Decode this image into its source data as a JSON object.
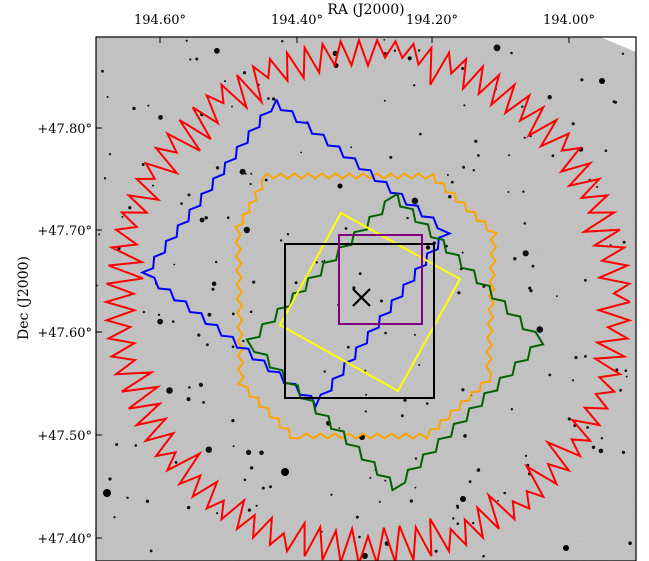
{
  "figure": {
    "top_axis_title": "RA (J2000)",
    "left_axis_title": "Dec (J2000)",
    "ra_ticks": [
      "194.60°",
      "194.40°",
      "194.20°",
      "194.00°"
    ],
    "dec_ticks": [
      "+47.80°",
      "+47.70°",
      "+47.60°",
      "+47.50°",
      "+47.40°"
    ],
    "sky_background": "grayscale DSS image",
    "center_marker": "x-mark",
    "footprints": [
      {
        "id": "red",
        "color": "#ff0000",
        "shape": "jagged survey outline"
      },
      {
        "id": "orange",
        "color": "#ffa500",
        "shape": "zigzag octagon"
      },
      {
        "id": "blue",
        "color": "#0000ff",
        "shape": "rotated jagged square"
      },
      {
        "id": "green",
        "color": "#006400",
        "shape": "rotated jagged square"
      },
      {
        "id": "yellow",
        "color": "#ffff00",
        "shape": "rotated square"
      },
      {
        "id": "black",
        "color": "#000000",
        "shape": "square"
      },
      {
        "id": "purple",
        "color": "#800080",
        "shape": "small square"
      }
    ]
  }
}
